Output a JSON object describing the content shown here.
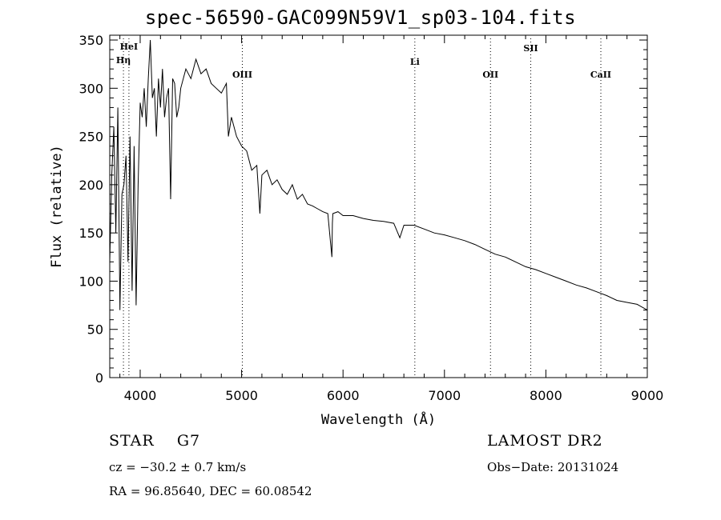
{
  "chart_data": {
    "type": "line",
    "title": "spec-56590-GAC099N59V1_sp03-104.fits",
    "xlabel": "Wavelength (Å)",
    "ylabel": "Flux (relative)",
    "xlim": [
      3700,
      9000
    ],
    "ylim": [
      0,
      355
    ],
    "xticks": [
      4000,
      5000,
      6000,
      7000,
      8000,
      9000
    ],
    "yticks": [
      0,
      50,
      100,
      150,
      200,
      250,
      300,
      350
    ],
    "grid": false,
    "series": [
      {
        "x": [
          3700,
          3720,
          3740,
          3760,
          3780,
          3800,
          3820,
          3840,
          3860,
          3880,
          3900,
          3920,
          3940,
          3960,
          3980,
          4000,
          4020,
          4040,
          4060,
          4080,
          4100,
          4120,
          4140,
          4160,
          4180,
          4200,
          4220,
          4240,
          4260,
          4280,
          4300,
          4320,
          4340,
          4360,
          4380,
          4400,
          4450,
          4500,
          4550,
          4600,
          4650,
          4700,
          4750,
          4800,
          4850,
          4870,
          4900,
          4950,
          5000,
          5050,
          5100,
          5150,
          5180,
          5200,
          5250,
          5300,
          5350,
          5400,
          5450,
          5500,
          5550,
          5600,
          5650,
          5700,
          5750,
          5800,
          5850,
          5890,
          5895,
          5900,
          5950,
          6000,
          6100,
          6200,
          6300,
          6400,
          6500,
          6560,
          6600,
          6700,
          6800,
          6900,
          7000,
          7100,
          7200,
          7300,
          7400,
          7500,
          7600,
          7700,
          7800,
          7900,
          8000,
          8100,
          8200,
          8300,
          8400,
          8500,
          8600,
          8700,
          8800,
          8900,
          9000
        ],
        "y": [
          120,
          210,
          260,
          150,
          280,
          70,
          190,
          200,
          230,
          120,
          250,
          90,
          240,
          75,
          200,
          285,
          270,
          300,
          260,
          310,
          350,
          290,
          300,
          250,
          310,
          280,
          320,
          270,
          290,
          300,
          185,
          310,
          305,
          270,
          280,
          300,
          320,
          310,
          330,
          315,
          320,
          305,
          300,
          295,
          305,
          250,
          270,
          250,
          240,
          235,
          215,
          220,
          170,
          210,
          215,
          200,
          205,
          195,
          190,
          200,
          185,
          190,
          180,
          178,
          175,
          172,
          170,
          125,
          160,
          170,
          172,
          168,
          168,
          165,
          163,
          162,
          160,
          145,
          158,
          158,
          154,
          150,
          148,
          145,
          142,
          138,
          133,
          128,
          125,
          120,
          115,
          112,
          108,
          104,
          100,
          96,
          93,
          89,
          85,
          80,
          78,
          76,
          70
        ]
      }
    ],
    "lines": [
      {
        "x": 3835,
        "label": "Hη"
      },
      {
        "x": 3889,
        "label": "HeI"
      },
      {
        "x": 5007,
        "label": "OIII"
      },
      {
        "x": 6708,
        "label": "Li"
      },
      {
        "x": 7454,
        "label": "OII"
      },
      {
        "x": 7851,
        "label": "SII"
      },
      {
        "x": 8542,
        "label": "CaII"
      }
    ]
  },
  "info": {
    "class": "STAR",
    "subclass": "G7",
    "survey": "LAMOST DR2",
    "cz": "cz = −30.2 ± 0.7 km/s",
    "obsdate": "Obs−Date: 20131024",
    "radec": "RA =  96.85640, DEC =  60.08542"
  }
}
